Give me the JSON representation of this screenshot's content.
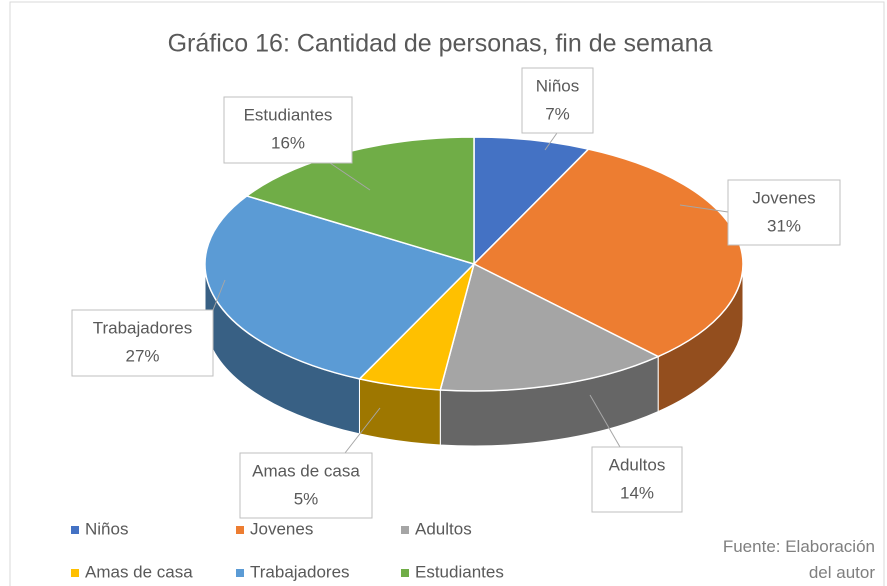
{
  "chart_data": {
    "type": "pie",
    "title": "Gráfico 16: Cantidad de personas, fin de semana",
    "categories": [
      "Niños",
      "Jovenes",
      "Adultos",
      "Amas de casa",
      "Trabajadores",
      "Estudiantes"
    ],
    "values": [
      7,
      31,
      14,
      5,
      27,
      16
    ],
    "value_labels": [
      "7%",
      "31%",
      "14%",
      "5%",
      "27%",
      "16%"
    ],
    "colors": [
      "#4472c4",
      "#ed7d31",
      "#a5a5a5",
      "#ffc000",
      "#5b9bd5",
      "#70ad47"
    ],
    "legend": "bottom",
    "source": "Fuente: Elaboración del autor"
  }
}
